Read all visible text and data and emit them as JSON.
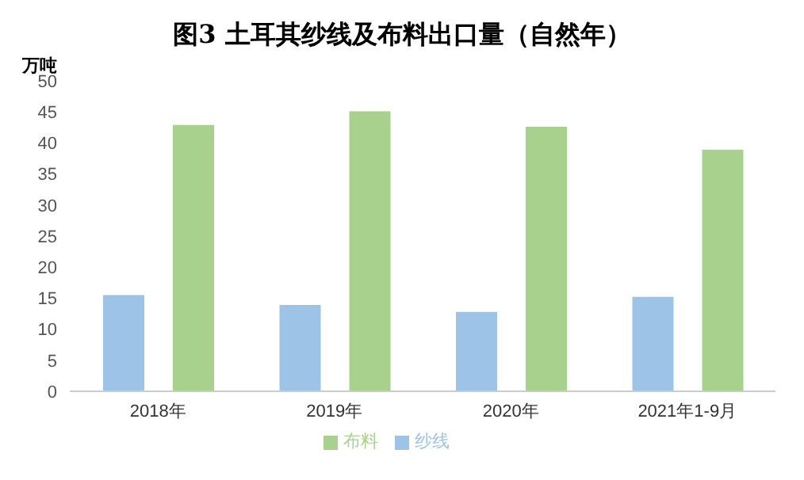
{
  "chart_data": {
    "type": "bar",
    "title": "图3  土耳其纱线及布料出口量（自然年）",
    "ylabel": "万吨",
    "categories": [
      "2018年",
      "2019年",
      "2020年",
      "2021年1-9月"
    ],
    "series": [
      {
        "name": "纱线",
        "color": "#9dc3e6",
        "values": [
          15.5,
          13.9,
          12.8,
          15.2
        ]
      },
      {
        "name": "布料",
        "color": "#a9d18e",
        "values": [
          42.9,
          45.1,
          42.6,
          38.9
        ]
      }
    ],
    "ylim": [
      0,
      50
    ],
    "yticks": [
      0,
      5,
      10,
      15,
      20,
      25,
      30,
      35,
      40,
      45,
      50
    ],
    "grid": false,
    "legend": "bottom"
  }
}
